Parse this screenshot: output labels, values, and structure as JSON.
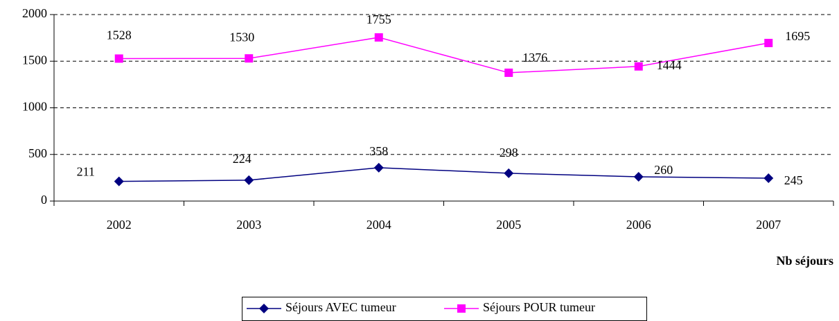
{
  "chart_data": {
    "type": "line",
    "x_label": "Nb séjours",
    "categories": [
      "2002",
      "2003",
      "2004",
      "2005",
      "2006",
      "2007"
    ],
    "series": [
      {
        "name": "Séjours AVEC tumeur",
        "color": "#000080",
        "marker": "diamond",
        "values": [
          211,
          224,
          358,
          298,
          260,
          245
        ]
      },
      {
        "name": "Séjours POUR tumeur",
        "color": "#ff00ff",
        "marker": "square",
        "values": [
          1528,
          1530,
          1755,
          1376,
          1444,
          1695
        ]
      }
    ],
    "ylim": [
      0,
      2000
    ],
    "yticks": [
      0,
      500,
      1000,
      1500,
      2000
    ],
    "grid": true,
    "legend": "bottom"
  }
}
